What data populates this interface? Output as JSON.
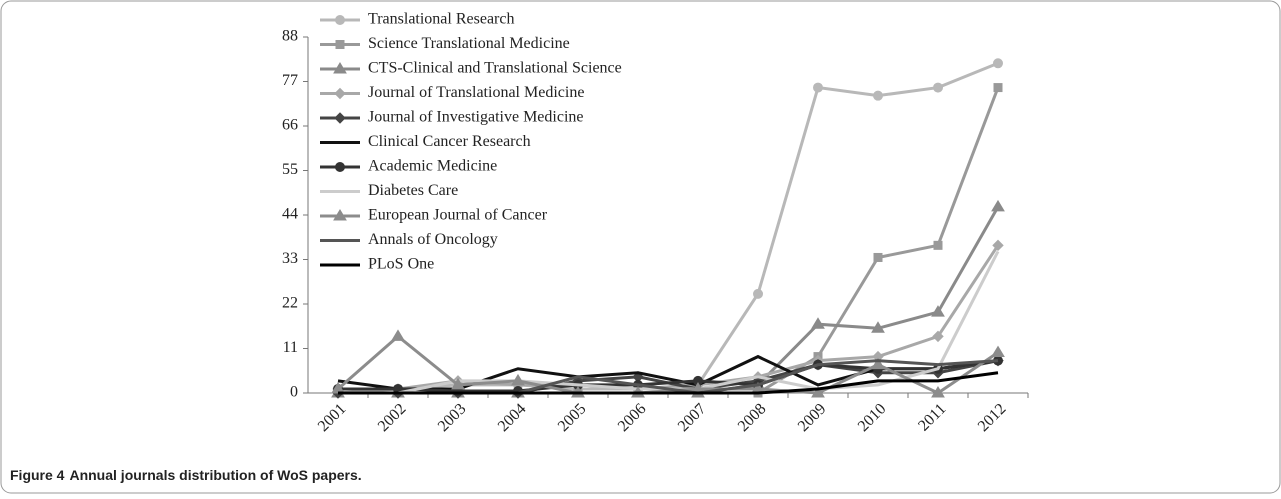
{
  "chart_data": {
    "type": "line",
    "caption_label": "Figure 4",
    "caption": "Annual journals distribution of WoS papers.",
    "categories": [
      "2001",
      "2002",
      "2003",
      "2004",
      "2005",
      "2006",
      "2007",
      "2008",
      "2009",
      "2010",
      "2011",
      "2012"
    ],
    "ylim": [
      0,
      88
    ],
    "yticks": [
      0,
      11,
      22,
      33,
      44,
      55,
      66,
      77,
      88
    ],
    "series": [
      {
        "name": "Translational Research",
        "color": "#b8b8b8",
        "marker": "circle",
        "values": [
          0,
          1,
          2,
          2,
          1,
          1,
          2,
          24.5,
          75.5,
          73.5,
          75.5,
          81.5
        ]
      },
      {
        "name": "Science Translational Medicine",
        "color": "#999999",
        "marker": "square",
        "values": [
          0,
          0,
          0,
          0,
          0,
          0,
          0,
          0,
          9,
          33.5,
          36.5,
          75.5
        ]
      },
      {
        "name": "CTS-Clinical and Translational Science",
        "color": "#8a8a8a",
        "marker": "triangle",
        "values": [
          0,
          0,
          0,
          0,
          0,
          0,
          0,
          2,
          17,
          16,
          20,
          46
        ]
      },
      {
        "name": "Journal of Translational Medicine",
        "color": "#a8a8a8",
        "marker": "diamond",
        "values": [
          1,
          1,
          3,
          2,
          2,
          1,
          2,
          4,
          8,
          9,
          14,
          36.5
        ]
      },
      {
        "name": "Journal of Investigative Medicine",
        "color": "#444444",
        "marker": "diamond",
        "values": [
          0,
          0,
          0,
          0,
          3,
          4,
          1,
          3,
          7,
          5,
          5,
          8
        ]
      },
      {
        "name": "Clinical Cancer Research",
        "color": "#111111",
        "marker": "none",
        "values": [
          3,
          1,
          1,
          6,
          4,
          5,
          2,
          9,
          2,
          6,
          6,
          8
        ]
      },
      {
        "name": "Academic Medicine",
        "color": "#333333",
        "marker": "circle",
        "values": [
          1,
          1,
          0.5,
          0.5,
          2,
          2,
          3,
          2,
          7,
          6,
          6,
          8
        ]
      },
      {
        "name": "Diabetes Care",
        "color": "#cccccc",
        "marker": "none",
        "values": [
          0,
          0,
          3,
          3,
          2,
          1,
          1,
          4,
          1,
          2,
          6,
          35
        ]
      },
      {
        "name": "European Journal of Cancer",
        "color": "#8c8c8c",
        "marker": "triangle",
        "values": [
          1,
          14,
          2,
          3,
          0,
          0,
          1,
          1,
          0,
          7,
          0,
          10
        ]
      },
      {
        "name": "Annals of Oncology",
        "color": "#555555",
        "marker": "none",
        "values": [
          0,
          0,
          0,
          0,
          4,
          2,
          0,
          2,
          7,
          8,
          7,
          8
        ]
      },
      {
        "name": "PLoS One",
        "color": "#000000",
        "marker": "none",
        "values": [
          0,
          0,
          0,
          0,
          0,
          0,
          0,
          0,
          1,
          3,
          3,
          5
        ]
      }
    ]
  }
}
